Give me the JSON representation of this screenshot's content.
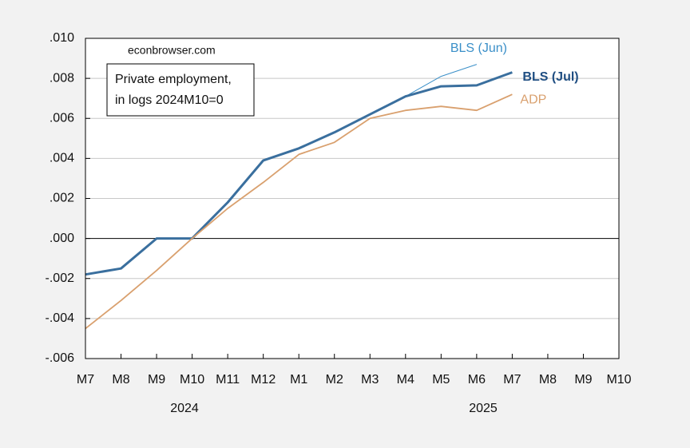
{
  "chart_data": {
    "type": "line",
    "categories": [
      "M7",
      "M8",
      "M9",
      "M10",
      "M11",
      "M12",
      "M1",
      "M2",
      "M3",
      "M4",
      "M5",
      "M6",
      "M7",
      "M8",
      "M9",
      "M10"
    ],
    "year_labels": [
      "2024",
      "2025"
    ],
    "source": "econbrowser.com",
    "box_text": [
      "Private employment,",
      "in logs 2024M10=0"
    ],
    "series": [
      {
        "name": "BLS (Jun)",
        "color": "#3a8fc8",
        "values": [
          null,
          null,
          null,
          null,
          null,
          null,
          null,
          null,
          null,
          0.0071,
          0.0081,
          0.0087,
          null,
          null,
          null,
          null
        ]
      },
      {
        "name": "BLS (Jul)",
        "color": "#3a6f9e",
        "values": [
          -0.0018,
          -0.0015,
          0.0,
          0.0,
          0.0018,
          0.0039,
          0.0045,
          0.0053,
          0.0062,
          0.0071,
          0.0076,
          0.00765,
          0.0083,
          null,
          null,
          null
        ]
      },
      {
        "name": "ADP",
        "color": "#d9a06e",
        "values": [
          -0.0045,
          -0.0031,
          -0.0016,
          0.0,
          0.0015,
          0.0028,
          0.0042,
          0.0048,
          0.006,
          0.0064,
          0.0066,
          0.0064,
          0.0072,
          null,
          null,
          null
        ]
      }
    ],
    "ylim": [
      -0.006,
      0.01
    ],
    "yticks": [
      {
        "value": -0.006,
        "label": "-.006"
      },
      {
        "value": -0.004,
        "label": "-.004"
      },
      {
        "value": -0.002,
        "label": "-.002"
      },
      {
        "value": 0,
        "label": ".000"
      },
      {
        "value": 0.002,
        "label": ".002"
      },
      {
        "value": 0.004,
        "label": ".004"
      },
      {
        "value": 0.006,
        "label": ".006"
      },
      {
        "value": 0.008,
        "label": ".008"
      },
      {
        "value": 0.01,
        "label": ".010"
      }
    ],
    "grid": true
  }
}
